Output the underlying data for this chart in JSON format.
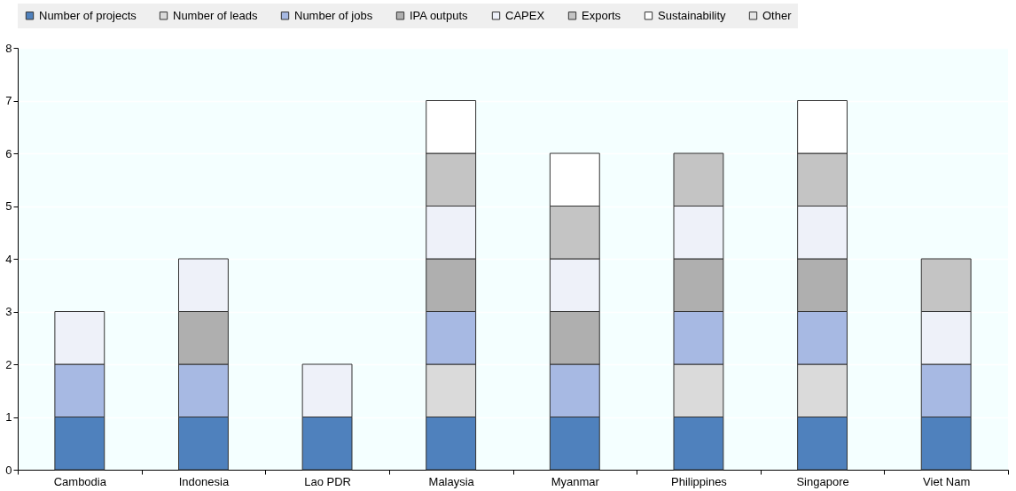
{
  "chart_data": {
    "type": "bar",
    "stacked": true,
    "categories": [
      "Cambodia",
      "Indonesia",
      "Lao PDR",
      "Malaysia",
      "Myanmar",
      "Philippines",
      "Singapore",
      "Viet Nam"
    ],
    "series": [
      {
        "name": "Number of projects",
        "color": "#4f81bd",
        "values": [
          1,
          1,
          1,
          1,
          1,
          1,
          1,
          1
        ]
      },
      {
        "name": "Number of leads",
        "color": "#dadada",
        "values": [
          0,
          0,
          0,
          1,
          0,
          1,
          1,
          0
        ]
      },
      {
        "name": "Number of jobs",
        "color": "#a7b9e3",
        "values": [
          1,
          1,
          0,
          1,
          1,
          1,
          1,
          1
        ]
      },
      {
        "name": "IPA outputs",
        "color": "#afafaf",
        "values": [
          0,
          1,
          0,
          1,
          1,
          1,
          1,
          0
        ]
      },
      {
        "name": "CAPEX",
        "color": "#eef1f9",
        "values": [
          1,
          1,
          1,
          1,
          1,
          1,
          1,
          1
        ]
      },
      {
        "name": "Exports",
        "color": "#c4c4c4",
        "values": [
          0,
          0,
          0,
          1,
          1,
          1,
          1,
          1
        ]
      },
      {
        "name": "Sustainability",
        "color": "#ffffff",
        "values": [
          0,
          0,
          0,
          1,
          1,
          0,
          1,
          0
        ]
      },
      {
        "name": "Other",
        "color": "#e6e6e6",
        "values": [
          0,
          0,
          0,
          0,
          0,
          0,
          0,
          0
        ]
      }
    ],
    "ylim": [
      0,
      8
    ],
    "yticks": [
      0,
      1,
      2,
      3,
      4,
      5,
      6,
      7,
      8
    ],
    "grid": "y",
    "legend": "top"
  }
}
